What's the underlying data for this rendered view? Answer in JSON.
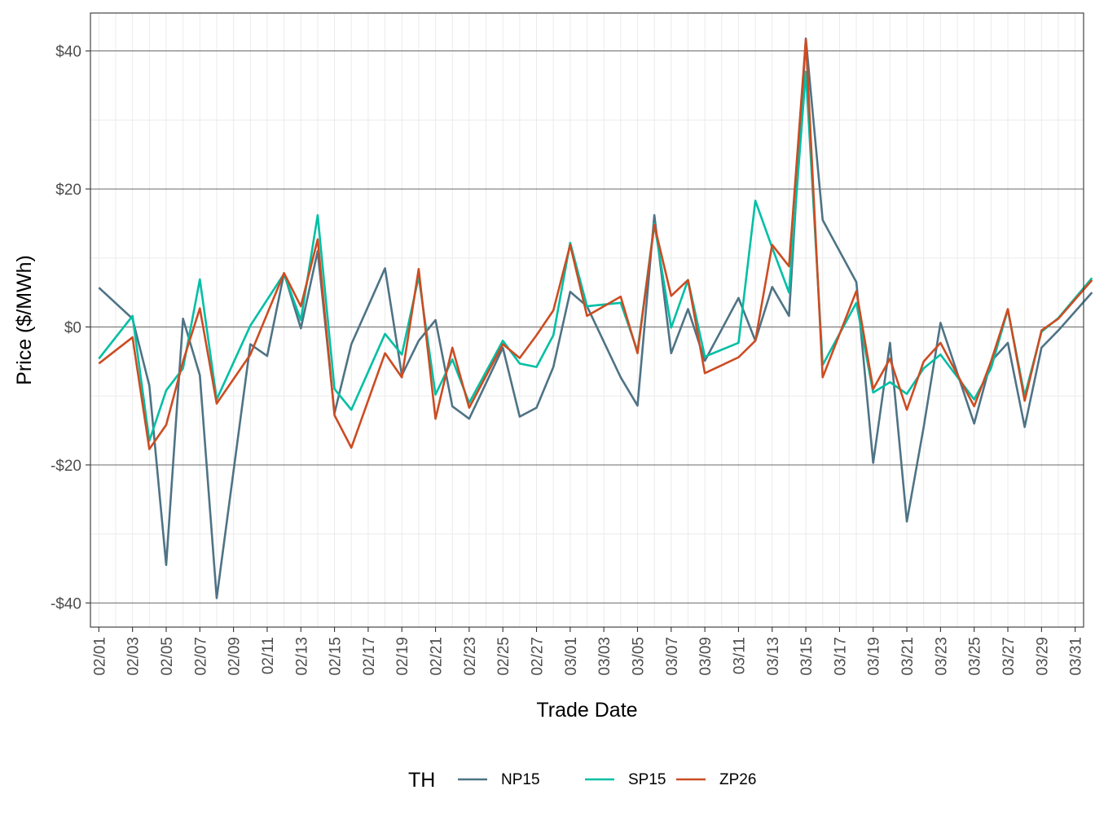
{
  "chart_data": {
    "type": "line",
    "xlabel": "Trade Date",
    "ylabel": "Price ($/MWh)",
    "ylim": [
      -43.5,
      45.5
    ],
    "xlim": [
      -0.5,
      58.5
    ],
    "y_ticks": [
      {
        "value": -40,
        "label": "-$40"
      },
      {
        "value": -20,
        "label": "-$20"
      },
      {
        "value": 0,
        "label": "$0"
      },
      {
        "value": 20,
        "label": "$20"
      },
      {
        "value": 40,
        "label": "$40"
      }
    ],
    "x_ticks": [
      {
        "index": 0,
        "label": "02/01"
      },
      {
        "index": 2,
        "label": "02/03"
      },
      {
        "index": 4,
        "label": "02/05"
      },
      {
        "index": 6,
        "label": "02/07"
      },
      {
        "index": 8,
        "label": "02/09"
      },
      {
        "index": 10,
        "label": "02/11"
      },
      {
        "index": 12,
        "label": "02/13"
      },
      {
        "index": 14,
        "label": "02/15"
      },
      {
        "index": 16,
        "label": "02/17"
      },
      {
        "index": 18,
        "label": "02/19"
      },
      {
        "index": 20,
        "label": "02/21"
      },
      {
        "index": 22,
        "label": "02/23"
      },
      {
        "index": 24,
        "label": "02/25"
      },
      {
        "index": 26,
        "label": "02/27"
      },
      {
        "index": 28,
        "label": "03/01"
      },
      {
        "index": 30,
        "label": "03/03"
      },
      {
        "index": 32,
        "label": "03/05"
      },
      {
        "index": 34,
        "label": "03/07"
      },
      {
        "index": 36,
        "label": "03/09"
      },
      {
        "index": 38,
        "label": "03/11"
      },
      {
        "index": 40,
        "label": "03/13"
      },
      {
        "index": 42,
        "label": "03/15"
      },
      {
        "index": 44,
        "label": "03/17"
      },
      {
        "index": 46,
        "label": "03/19"
      },
      {
        "index": 48,
        "label": "03/21"
      },
      {
        "index": 50,
        "label": "03/23"
      },
      {
        "index": 52,
        "label": "03/25"
      },
      {
        "index": 54,
        "label": "03/27"
      },
      {
        "index": 56,
        "label": "03/29"
      },
      {
        "index": 58,
        "label": "03/31"
      }
    ],
    "grid": true,
    "legend": {
      "title": "TH",
      "position": "bottom"
    },
    "series": [
      {
        "name": "NP15",
        "color": "#4e7385",
        "points": [
          [
            0,
            5.7
          ],
          [
            2,
            1.2
          ],
          [
            3,
            -8.5
          ],
          [
            4,
            -34.5
          ],
          [
            5,
            1.2
          ],
          [
            6,
            -7.0
          ],
          [
            7,
            -39.3
          ],
          [
            9,
            -2.5
          ],
          [
            10,
            -4.2
          ],
          [
            11,
            7.8
          ],
          [
            12,
            -0.2
          ],
          [
            13,
            11.0
          ],
          [
            14,
            -12.5
          ],
          [
            15,
            -2.5
          ],
          [
            17,
            8.5
          ],
          [
            18,
            -7.0
          ],
          [
            19,
            -2.0
          ],
          [
            20,
            1.0
          ],
          [
            21,
            -11.5
          ],
          [
            22,
            -13.3
          ],
          [
            24,
            -3.0
          ],
          [
            25,
            -13.0
          ],
          [
            26,
            -11.7
          ],
          [
            27,
            -5.8
          ],
          [
            28,
            5.1
          ],
          [
            29,
            3.0
          ],
          [
            31,
            -7.3
          ],
          [
            32,
            -11.4
          ],
          [
            33,
            16.2
          ],
          [
            34,
            -3.8
          ],
          [
            35,
            2.6
          ],
          [
            36,
            -4.9
          ],
          [
            38,
            4.2
          ],
          [
            39,
            -2.0
          ],
          [
            40,
            5.8
          ],
          [
            41,
            1.6
          ],
          [
            42,
            41.8
          ],
          [
            43,
            15.5
          ],
          [
            45,
            6.5
          ],
          [
            46,
            -19.7
          ],
          [
            47,
            -2.3
          ],
          [
            48,
            -28.2
          ],
          [
            49,
            -14.5
          ],
          [
            50,
            0.6
          ],
          [
            52,
            -14.0
          ],
          [
            53,
            -5.0
          ],
          [
            54,
            -2.3
          ],
          [
            55,
            -14.5
          ],
          [
            56,
            -3.0
          ],
          [
            57,
            -0.5
          ],
          [
            59,
            5.0
          ]
        ]
      },
      {
        "name": "SP15",
        "color": "#00bfa5",
        "points": [
          [
            0,
            -4.6
          ],
          [
            2,
            1.6
          ],
          [
            3,
            -16.5
          ],
          [
            4,
            -9.2
          ],
          [
            5,
            -6.0
          ],
          [
            6,
            6.9
          ],
          [
            7,
            -10.5
          ],
          [
            9,
            0.2
          ],
          [
            11,
            7.7
          ],
          [
            12,
            1.0
          ],
          [
            13,
            16.2
          ],
          [
            14,
            -9.0
          ],
          [
            15,
            -12.0
          ],
          [
            17,
            -1.0
          ],
          [
            18,
            -4.0
          ],
          [
            19,
            7.3
          ],
          [
            20,
            -9.8
          ],
          [
            21,
            -4.7
          ],
          [
            22,
            -11.0
          ],
          [
            24,
            -2.0
          ],
          [
            25,
            -5.3
          ],
          [
            26,
            -5.8
          ],
          [
            27,
            -1.2
          ],
          [
            28,
            12.2
          ],
          [
            29,
            3.0
          ],
          [
            31,
            3.5
          ],
          [
            32,
            -3.5
          ],
          [
            33,
            15.0
          ],
          [
            34,
            -0.1
          ],
          [
            35,
            6.8
          ],
          [
            36,
            -4.3
          ],
          [
            38,
            -2.3
          ],
          [
            39,
            18.3
          ],
          [
            40,
            11.5
          ],
          [
            41,
            5.0
          ],
          [
            42,
            37.0
          ],
          [
            43,
            -5.5
          ],
          [
            45,
            3.5
          ],
          [
            46,
            -9.5
          ],
          [
            47,
            -8.0
          ],
          [
            48,
            -9.7
          ],
          [
            49,
            -6.0
          ],
          [
            50,
            -4.0
          ],
          [
            52,
            -10.5
          ],
          [
            53,
            -6.0
          ],
          [
            54,
            2.5
          ],
          [
            55,
            -10.0
          ],
          [
            56,
            -0.7
          ],
          [
            57,
            1.3
          ],
          [
            59,
            7.1
          ]
        ]
      },
      {
        "name": "ZP26",
        "color": "#cc4c22",
        "points": [
          [
            0,
            -5.3
          ],
          [
            2,
            -1.5
          ],
          [
            3,
            -17.7
          ],
          [
            4,
            -14.2
          ],
          [
            5,
            -5.0
          ],
          [
            6,
            2.7
          ],
          [
            7,
            -11.1
          ],
          [
            9,
            -4.0
          ],
          [
            11,
            7.8
          ],
          [
            12,
            3.0
          ],
          [
            13,
            12.7
          ],
          [
            14,
            -12.8
          ],
          [
            15,
            -17.5
          ],
          [
            17,
            -3.8
          ],
          [
            18,
            -7.3
          ],
          [
            19,
            8.4
          ],
          [
            20,
            -13.3
          ],
          [
            21,
            -3.0
          ],
          [
            22,
            -11.7
          ],
          [
            24,
            -2.5
          ],
          [
            25,
            -4.5
          ],
          [
            26,
            -1.2
          ],
          [
            27,
            2.4
          ],
          [
            28,
            11.9
          ],
          [
            29,
            1.6
          ],
          [
            31,
            4.4
          ],
          [
            32,
            -3.8
          ],
          [
            33,
            14.8
          ],
          [
            34,
            4.5
          ],
          [
            35,
            6.8
          ],
          [
            36,
            -6.7
          ],
          [
            38,
            -4.4
          ],
          [
            39,
            -2.0
          ],
          [
            40,
            11.9
          ],
          [
            41,
            8.8
          ],
          [
            42,
            41.7
          ],
          [
            43,
            -7.3
          ],
          [
            45,
            5.2
          ],
          [
            46,
            -9.0
          ],
          [
            47,
            -4.6
          ],
          [
            48,
            -12.0
          ],
          [
            49,
            -5.0
          ],
          [
            50,
            -2.3
          ],
          [
            52,
            -11.5
          ],
          [
            53,
            -5.0
          ],
          [
            54,
            2.6
          ],
          [
            55,
            -10.7
          ],
          [
            56,
            -0.5
          ],
          [
            57,
            1.2
          ],
          [
            59,
            6.8
          ]
        ]
      }
    ]
  }
}
